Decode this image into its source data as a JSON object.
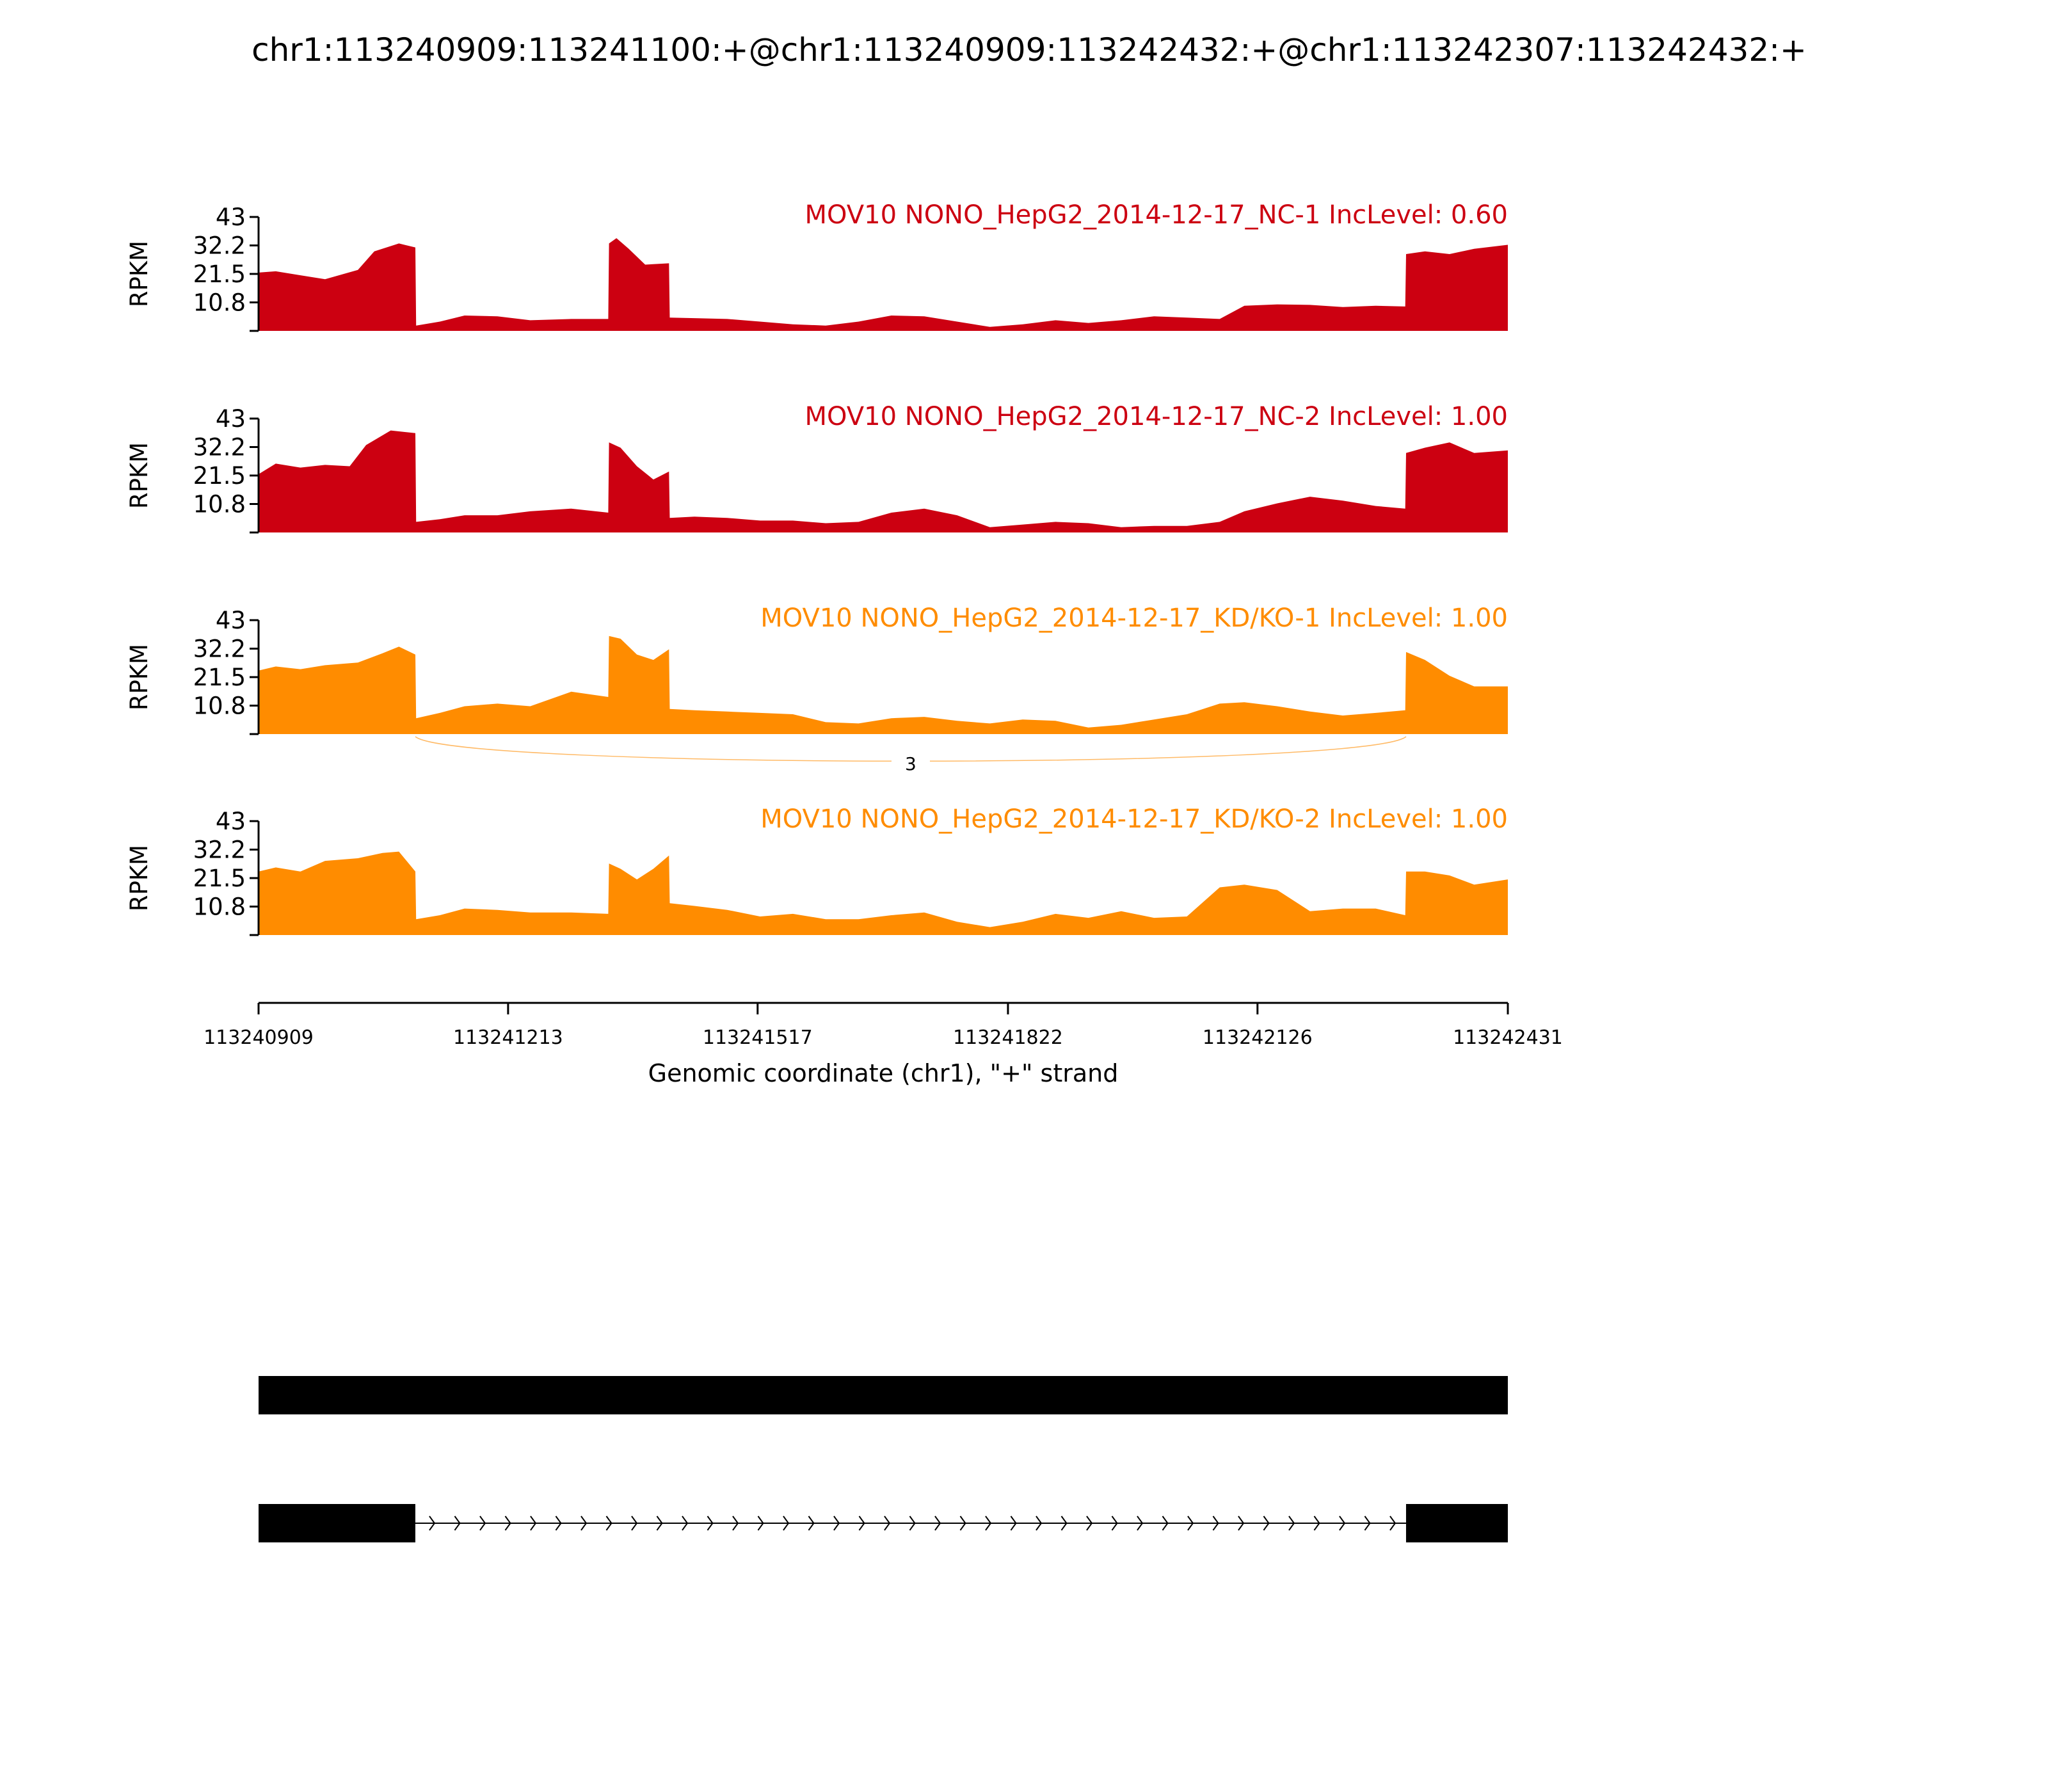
{
  "title": "chr1:113240909:113241100:+@chr1:113240909:113242432:+@chr1:113242307:113242432:+",
  "chart_data": {
    "type": "area",
    "title": "chr1:113240909:113241100:+@chr1:113240909:113242432:+@chr1:113242307:113242432:+",
    "ylabel": "RPKM",
    "xlabel": "Genomic coordinate (chr1), \"+\" strand",
    "xlim": [
      113240909,
      113242431
    ],
    "ylim": [
      0,
      43
    ],
    "yticks": [
      "43",
      "32.2",
      "21.5",
      "10.8"
    ],
    "xticks": [
      "113240909",
      "113241213",
      "113241517",
      "113241822",
      "113242126",
      "113242431"
    ],
    "series": [
      {
        "name": "MOV10 NONO_HepG2_2014-12-17_NC-1 IncLevel: 0.60",
        "color": "#cc0011",
        "x": [
          113240909,
          113240930,
          113240960,
          113240990,
          113241030,
          113241050,
          113241080,
          113241100,
          113241101,
          113241130,
          113241160,
          113241200,
          113241240,
          113241290,
          113241335,
          113241336,
          113241345,
          113241360,
          113241380,
          113241409,
          113241410,
          113241440,
          113241480,
          113241520,
          113241560,
          113241600,
          113241640,
          113241680,
          113241720,
          113241760,
          113241800,
          113241840,
          113241880,
          113241920,
          113241960,
          113242000,
          113242040,
          113242080,
          113242110,
          113242150,
          113242190,
          113242230,
          113242270,
          113242306,
          113242307,
          113242330,
          113242360,
          113242390,
          113242431
        ],
        "values": [
          22,
          22.5,
          21,
          19.5,
          23,
          30,
          33,
          31.5,
          2,
          3.5,
          5.8,
          5.5,
          4,
          4.5,
          4.5,
          33,
          35,
          31,
          25,
          25.5,
          5,
          4.8,
          4.5,
          3.5,
          2.5,
          2,
          3.5,
          5.8,
          5.5,
          3.5,
          1.5,
          2.5,
          4,
          3,
          4,
          5.5,
          5,
          4.5,
          9.5,
          10,
          9.8,
          9,
          9.5,
          9.2,
          29,
          30,
          29,
          31,
          32.5
        ]
      },
      {
        "name": "MOV10 NONO_HepG2_2014-12-17_NC-2 IncLevel: 1.00",
        "color": "#cc0011",
        "x": [
          113240909,
          113240930,
          113240960,
          113240990,
          113241020,
          113241040,
          113241070,
          113241100,
          113241101,
          113241130,
          113241160,
          113241200,
          113241240,
          113241290,
          113241335,
          113241336,
          113241350,
          113241370,
          113241390,
          113241409,
          113241410,
          113241440,
          113241480,
          113241520,
          113241560,
          113241600,
          113241640,
          113241680,
          113241720,
          113241760,
          113241800,
          113241840,
          113241880,
          113241920,
          113241960,
          113242000,
          113242040,
          113242080,
          113242110,
          113242150,
          113242190,
          113242230,
          113242270,
          113242306,
          113242307,
          113242330,
          113242360,
          113242390,
          113242431
        ],
        "values": [
          22,
          26,
          24.5,
          25.5,
          25,
          33,
          38.5,
          37.5,
          4,
          5,
          6.5,
          6.5,
          8,
          9,
          7.5,
          34,
          32,
          25,
          20,
          23,
          5.5,
          6,
          5.5,
          4.5,
          4.5,
          3.5,
          4,
          7.5,
          9,
          6.5,
          2,
          3,
          4,
          3.5,
          2,
          2.5,
          2.5,
          4,
          8,
          11,
          13.5,
          12,
          10,
          9,
          30,
          32,
          34,
          30,
          31
        ]
      },
      {
        "name": "MOV10 NONO_HepG2_2014-12-17_KD/KO-1 IncLevel: 1.00",
        "color": "#ff8c00",
        "x": [
          113240909,
          113240930,
          113240960,
          113240990,
          113241030,
          113241060,
          113241080,
          113241100,
          113241101,
          113241130,
          113241160,
          113241200,
          113241240,
          113241290,
          113241335,
          113241336,
          113241350,
          113241370,
          113241390,
          113241409,
          113241410,
          113241440,
          113241480,
          113241520,
          113241560,
          113241600,
          113241640,
          113241680,
          113241720,
          113241760,
          113241800,
          113241840,
          113241880,
          113241920,
          113241960,
          113242000,
          113242040,
          113242080,
          113242110,
          113242150,
          113242190,
          113242230,
          113242270,
          113242306,
          113242307,
          113242330,
          113242360,
          113242390,
          113242431
        ],
        "values": [
          24,
          25.5,
          24.5,
          26,
          27,
          30.5,
          33,
          30,
          6,
          8,
          10.5,
          11.5,
          10.5,
          16,
          14,
          37,
          36,
          30,
          28,
          32,
          9.5,
          9,
          8.5,
          8,
          7.5,
          4.5,
          4,
          6,
          6.5,
          5,
          4,
          5.5,
          5,
          2.5,
          3.5,
          5.5,
          7.5,
          11.5,
          12,
          10.5,
          8.5,
          7,
          8,
          9,
          31,
          28,
          22,
          18,
          18
        ]
      },
      {
        "name": "MOV10 NONO_HepG2_2014-12-17_KD/KO-2 IncLevel: 1.00",
        "color": "#ff8c00",
        "x": [
          113240909,
          113240930,
          113240960,
          113240990,
          113241030,
          113241060,
          113241080,
          113241100,
          113241101,
          113241130,
          113241160,
          113241200,
          113241240,
          113241290,
          113241335,
          113241336,
          113241350,
          113241370,
          113241390,
          113241409,
          113241410,
          113241440,
          113241480,
          113241520,
          113241560,
          113241600,
          113241640,
          113241680,
          113241720,
          113241760,
          113241800,
          113241840,
          113241880,
          113241920,
          113241960,
          113242000,
          113242040,
          113242080,
          113242110,
          113242150,
          113242190,
          113242230,
          113242270,
          113242306,
          113242307,
          113242330,
          113242360,
          113242390,
          113242431
        ],
        "values": [
          24,
          25.5,
          24,
          28,
          29,
          31,
          31.5,
          24,
          6,
          7.5,
          10,
          9.5,
          8.5,
          8.5,
          8,
          27,
          25,
          21,
          25,
          30,
          12,
          11,
          9.5,
          7,
          8,
          6,
          6,
          7.5,
          8.5,
          5,
          3,
          5,
          8,
          6.5,
          9,
          6.5,
          7,
          18,
          19,
          17,
          9,
          10,
          10,
          7.5,
          24,
          24,
          22.5,
          19,
          21
        ]
      }
    ],
    "junctions": [
      {
        "track": 2,
        "start": 113241100,
        "end": 113242307,
        "count": "3"
      }
    ],
    "gene_model": {
      "isoforms": [
        {
          "exons": [
            [
              113240909,
              113242431
            ]
          ]
        },
        {
          "exons": [
            [
              113240909,
              113241100
            ],
            [
              113242307,
              113242431
            ]
          ],
          "strand": "+"
        }
      ]
    }
  }
}
